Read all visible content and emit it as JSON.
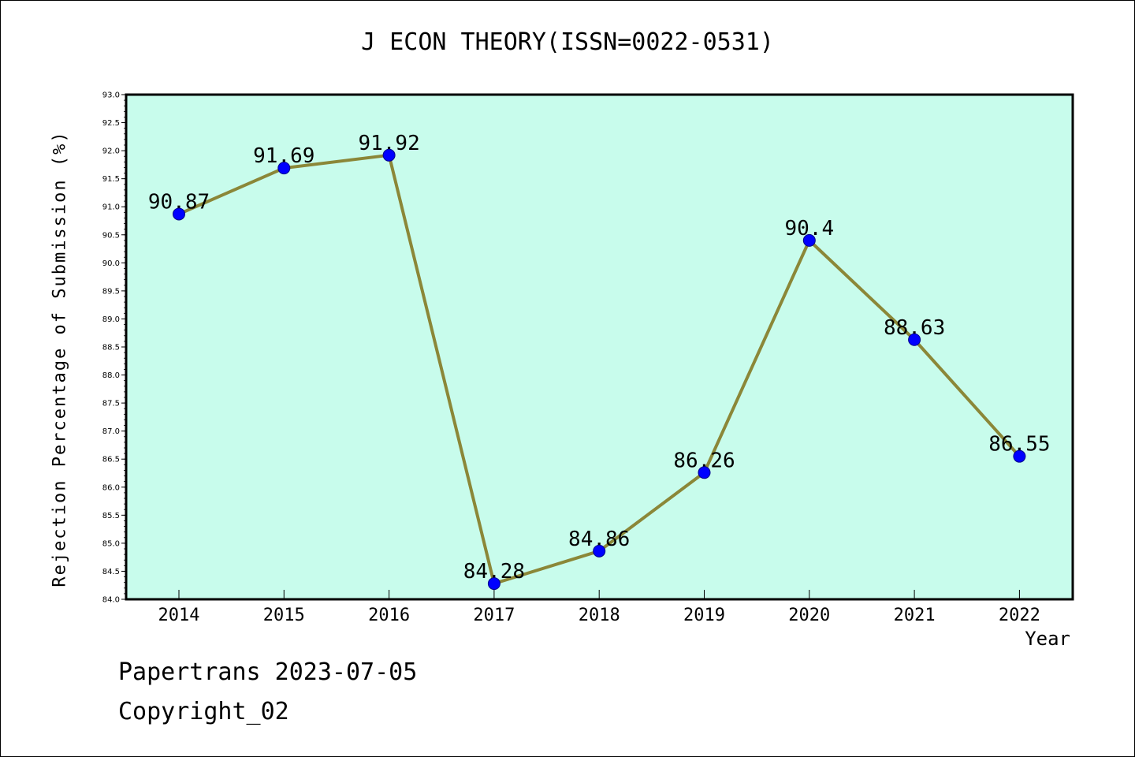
{
  "chart_data": {
    "type": "line",
    "title": "J ECON THEORY(ISSN=0022-0531)",
    "xlabel": "Year",
    "ylabel": "Rejection Percentage of Submission (%)",
    "categories": [
      "2014",
      "2015",
      "2016",
      "2017",
      "2018",
      "2019",
      "2020",
      "2021",
      "2022"
    ],
    "series": [
      {
        "values": [
          90.87,
          91.69,
          91.92,
          84.28,
          84.86,
          86.26,
          90.4,
          88.63,
          86.55
        ],
        "labels": [
          "90.87",
          "91.69",
          "91.92",
          "84.28",
          "84.86",
          "86.26",
          "90.4",
          "88.63",
          "86.55"
        ]
      }
    ],
    "ylim": [
      84.0,
      93.0
    ],
    "yticks": [
      "84.0",
      "84.5",
      "85.0",
      "85.5",
      "86.0",
      "86.5",
      "87.0",
      "87.5",
      "88.0",
      "88.5",
      "89.0",
      "89.5",
      "90.0",
      "90.5",
      "91.0",
      "91.5",
      "92.0",
      "92.5",
      "93.0"
    ],
    "grid": false,
    "legend": "none",
    "colors": {
      "plot_background": "#c8fcec",
      "line": "#8b8738",
      "marker": "#0000ff"
    }
  },
  "footer": {
    "line1": "Papertrans 2023-07-05",
    "line2": "Copyright_02"
  }
}
